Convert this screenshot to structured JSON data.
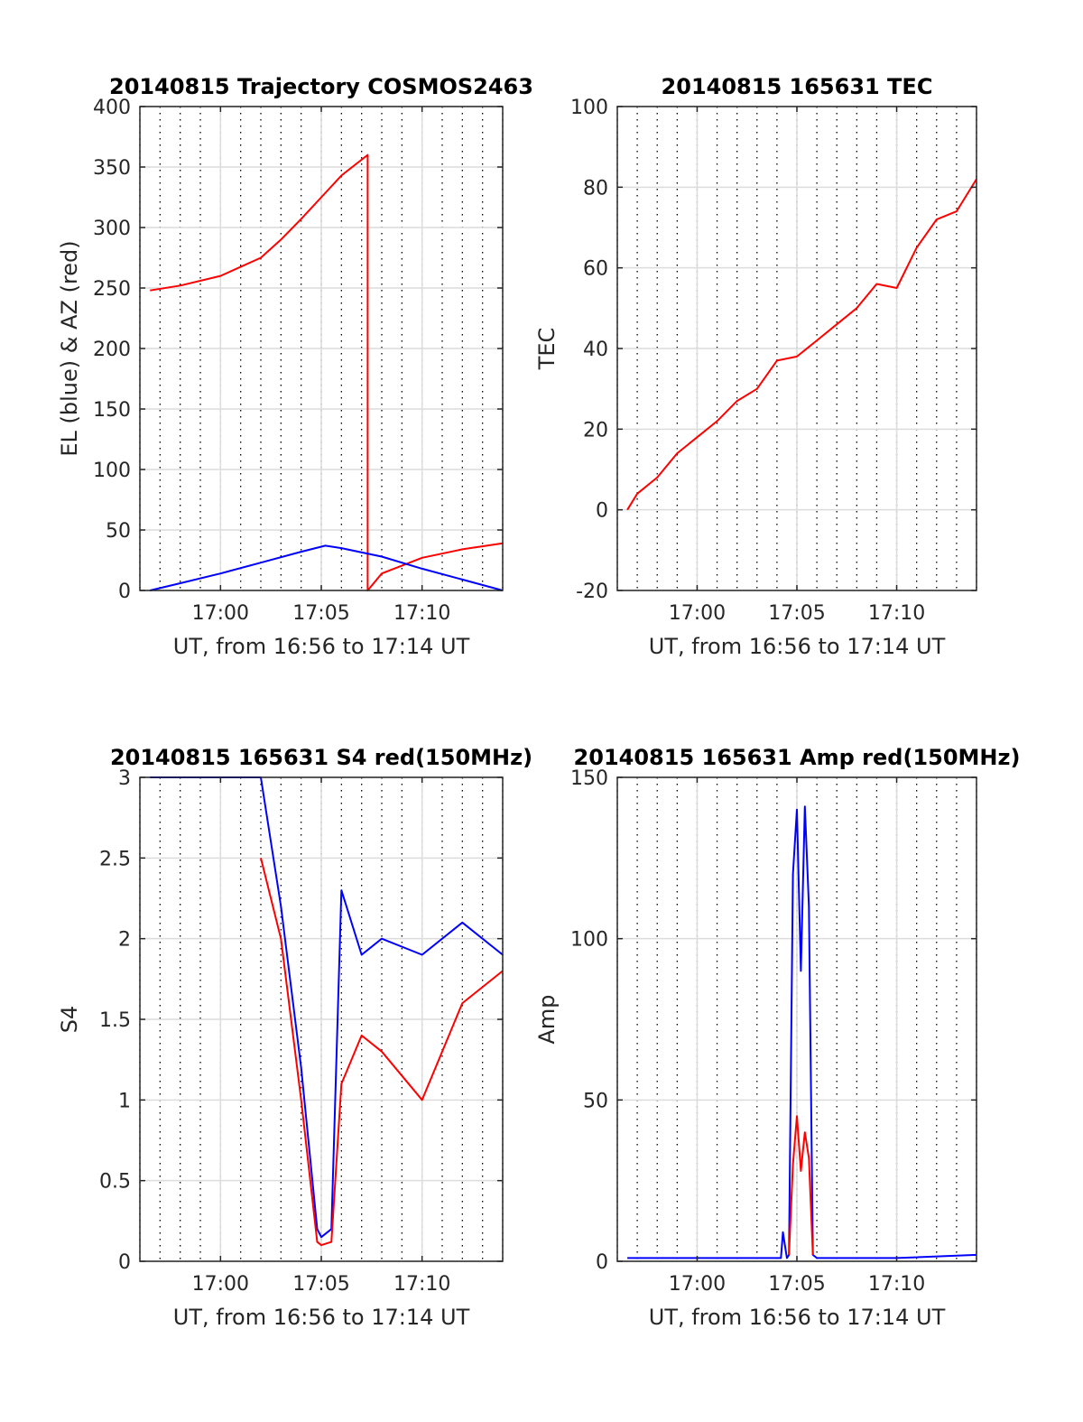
{
  "chart_data": [
    {
      "type": "line",
      "title": "20140815 Trajectory COSMOS2463",
      "xlabel": "UT, from 16:56 to 17:14 UT",
      "ylabel": "EL (blue) & AZ (red)",
      "xlim": [
        "16:56",
        "17:14"
      ],
      "ylim": [
        0,
        400
      ],
      "xticks": [
        "17:00",
        "17:05",
        "17:10"
      ],
      "yticks": [
        "0",
        "50",
        "100",
        "150",
        "200",
        "250",
        "300",
        "350",
        "400"
      ],
      "grid": true,
      "series": [
        {
          "color": "#ff0000",
          "x": [
            "16:56.5",
            "16:58",
            "17:00",
            "17:02",
            "17:03",
            "17:04",
            "17:05",
            "17:06",
            "17:07.3",
            "17:07.3",
            "17:08",
            "17:10",
            "17:12",
            "17:14"
          ],
          "y": [
            248,
            252,
            260,
            275,
            290,
            307,
            325,
            343,
            360,
            0,
            14,
            27,
            34,
            39
          ]
        },
        {
          "color": "#0000ff",
          "x": [
            "16:56.5",
            "16:58",
            "17:00",
            "17:02",
            "17:04",
            "17:05.2",
            "17:06",
            "17:08",
            "17:10",
            "17:12",
            "17:14"
          ],
          "y": [
            0,
            6,
            14,
            23,
            32,
            37,
            35,
            28,
            18,
            9,
            0
          ]
        }
      ]
    },
    {
      "type": "line",
      "title": "20140815 165631 TEC",
      "xlabel": "UT, from 16:56 to 17:14 UT",
      "ylabel": "TEC",
      "xlim": [
        "16:56",
        "17:14"
      ],
      "ylim": [
        -20,
        100
      ],
      "xticks": [
        "17:00",
        "17:05",
        "17:10"
      ],
      "yticks": [
        "-20",
        "0",
        "20",
        "40",
        "60",
        "80",
        "100"
      ],
      "grid": true,
      "series": [
        {
          "color": "#ff0000",
          "x": [
            "16:56.5",
            "16:57",
            "16:58",
            "16:59",
            "17:00",
            "17:01",
            "17:02",
            "17:03",
            "17:04",
            "17:05",
            "17:06",
            "17:07",
            "17:08",
            "17:09",
            "17:10",
            "17:11",
            "17:12",
            "17:13",
            "17:14"
          ],
          "y": [
            0,
            4,
            8,
            14,
            18,
            22,
            27,
            30,
            37,
            38,
            42,
            46,
            50,
            56,
            55,
            65,
            72,
            74,
            82
          ]
        }
      ]
    },
    {
      "type": "line",
      "title": "20140815 165631 S4 red(150MHz)",
      "xlabel": "UT, from 16:56 to 17:14 UT",
      "ylabel": "S4",
      "xlim": [
        "16:56",
        "17:14"
      ],
      "ylim": [
        0,
        3
      ],
      "xticks": [
        "17:00",
        "17:05",
        "17:10"
      ],
      "yticks": [
        "0",
        "0.5",
        "1",
        "1.5",
        "2",
        "2.5",
        "3"
      ],
      "grid": true,
      "series": [
        {
          "color": "#0000ff",
          "x": [
            "16:56.5",
            "17:02",
            "17:03",
            "17:04",
            "17:04.8",
            "17:05",
            "17:05.5",
            "17:06",
            "17:07",
            "17:08",
            "17:10",
            "17:12",
            "17:14"
          ],
          "y": [
            3.0,
            3.0,
            2.2,
            1.2,
            0.2,
            0.15,
            0.2,
            2.3,
            1.9,
            2.0,
            1.9,
            2.1,
            1.9
          ]
        },
        {
          "color": "#ff0000",
          "x": [
            "17:02",
            "17:03",
            "17:04",
            "17:04.8",
            "17:05",
            "17:05.5",
            "17:06",
            "17:07",
            "17:08",
            "17:10",
            "17:12",
            "17:14"
          ],
          "y": [
            2.5,
            2.0,
            1.0,
            0.12,
            0.1,
            0.12,
            1.1,
            1.4,
            1.3,
            1.0,
            1.6,
            1.8
          ]
        }
      ]
    },
    {
      "type": "line",
      "title": "20140815 165631 Amp red(150MHz)",
      "xlabel": "UT, from 16:56 to 17:14 UT",
      "ylabel": "Amp",
      "xlim": [
        "16:56",
        "17:14"
      ],
      "ylim": [
        0,
        150
      ],
      "xticks": [
        "17:00",
        "17:05",
        "17:10"
      ],
      "yticks": [
        "0",
        "50",
        "100",
        "150"
      ],
      "grid": true,
      "series": [
        {
          "color": "#0000ff",
          "x": [
            "16:56.5",
            "17:03",
            "17:04.2",
            "17:04.3",
            "17:04.5",
            "17:04.6",
            "17:04.8",
            "17:05",
            "17:05.2",
            "17:05.4",
            "17:05.6",
            "17:05.8",
            "17:06",
            "17:10",
            "17:14"
          ],
          "y": [
            1,
            1,
            1,
            9,
            1,
            2,
            120,
            140,
            90,
            141,
            110,
            2,
            1,
            1,
            2
          ]
        },
        {
          "color": "#ff0000",
          "x": [
            "17:04.6",
            "17:04.8",
            "17:05",
            "17:05.2",
            "17:05.4",
            "17:05.6",
            "17:05.8"
          ],
          "y": [
            2,
            30,
            45,
            28,
            40,
            32,
            2
          ]
        }
      ]
    }
  ]
}
